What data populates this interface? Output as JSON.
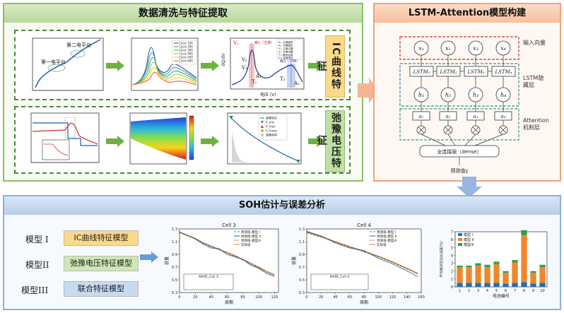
{
  "top_left": {
    "title": "数据清洗与特征提取",
    "ic_feature_label": "IC曲线特征",
    "relax_feature_label": "弛豫电压特征",
    "plot1": {
      "annotations": [
        "第二电平台",
        "第一电平台"
      ]
    },
    "plot2": {
      "legend": [
        "Cycle 100",
        "Cycle 200",
        "Cycle 300",
        "Cycle 400",
        "Cycle 500",
        "Cycle 600"
      ]
    },
    "plot3": {
      "ylabel": "dQ/dV",
      "xlabel": "电压 (V)",
      "annotations": [
        "V₁",
        "V₂",
        "V₃",
        "峰1（主峰）",
        "峰2（次峰）",
        "A₁",
        "A₂",
        "T₁",
        "T₂"
      ],
      "legend": [
        "A₁: 主峰面积",
        "A₂: 次峰面积",
        "V₁: 主峰位置",
        "V₂: 次峰位置",
        "T₁: 峰间谷值",
        "V₃: 谷值电压"
      ]
    },
    "plot6": {
      "legend": [
        "弛豫电压",
        "V_min",
        "V_max",
        "V_mean",
        "弛豫斜率"
      ]
    }
  },
  "top_right": {
    "title": "LSTM-Attention模型构建",
    "inputs": [
      "x₁",
      "x₂",
      "x₃",
      "x₄"
    ],
    "lstm_cells": [
      "LSTM₁",
      "LSTM₂",
      "LSTM₃",
      "LSTM₄"
    ],
    "hidden": [
      "h₁",
      "h₂",
      "h₃",
      "h₄"
    ],
    "attention": [
      "a₁",
      "a₂",
      "a₃",
      "a₄"
    ],
    "input_layer_label": "输入向量",
    "lstm_layer_label": "LSTM隐藏层",
    "attention_layer_label": "Attention机制层",
    "fc_label": "全连接层（dense）",
    "output_label": "预测值y"
  },
  "bottom": {
    "title": "SOH估计与误差分析",
    "models": [
      {
        "name": "模型 I",
        "desc": "IC曲线特征模型",
        "color": "#fbd98a"
      },
      {
        "name": "模型II",
        "desc": "弛豫电压特征模型",
        "color": "#cfe6b5"
      },
      {
        "name": "模型III",
        "desc": "联合特征模型",
        "color": "#c6daf0"
      }
    ],
    "chart_cell3": {
      "title": "Cell 3",
      "xlabel": "周期",
      "ylabel": "容量",
      "inset_title": "MAPE_Cell 3",
      "legend": [
        "预测值-模型 I",
        "预测值-模型 II",
        "预测值-模型III",
        "实际值"
      ]
    },
    "chart_cell4": {
      "title": "Cell 4",
      "xlabel": "周期",
      "ylabel": "容量",
      "inset_title": "MAPE_Cell 4",
      "legend": [
        "预测值-模型 I",
        "预测值-模型 II",
        "预测值-模型III",
        "实际值"
      ]
    },
    "bar_chart": {
      "ylabel": "平均绝对百分比误差(%)",
      "xlabel": "电池编号",
      "legend": [
        "模型 I",
        "模型 II",
        "模型III"
      ]
    }
  },
  "chart_data": [
    {
      "type": "line",
      "title": "Cell 3",
      "xlabel": "周期",
      "ylabel": "容量",
      "xlim": [
        0,
        125
      ],
      "ylim": [
        0.3,
        1.3
      ],
      "xticks": [
        0,
        20,
        40,
        60,
        80,
        100,
        120
      ],
      "yticks": [
        0.3,
        0.5,
        0.7,
        0.9,
        1.1,
        1.3
      ],
      "x": [
        0,
        10,
        20,
        30,
        40,
        50,
        60,
        70,
        80,
        90,
        100,
        110,
        120
      ],
      "series": [
        {
          "name": "实际值",
          "values": [
            1.25,
            1.2,
            1.15,
            1.08,
            1.03,
            0.98,
            0.93,
            0.88,
            0.82,
            0.76,
            0.7,
            0.63,
            0.58
          ]
        },
        {
          "name": "预测值-模型 I",
          "values": [
            1.24,
            1.19,
            1.14,
            1.07,
            1.02,
            0.97,
            0.92,
            0.87,
            0.81,
            0.75,
            0.69,
            0.62,
            0.57
          ]
        },
        {
          "name": "预测值-模型 II",
          "values": [
            1.25,
            1.2,
            1.14,
            1.06,
            1.0,
            0.99,
            0.9,
            0.86,
            0.82,
            0.73,
            0.68,
            0.6,
            0.55
          ]
        },
        {
          "name": "预测值-模型III",
          "values": [
            1.25,
            1.2,
            1.15,
            1.08,
            1.03,
            0.98,
            0.93,
            0.88,
            0.82,
            0.76,
            0.7,
            0.63,
            0.58
          ]
        }
      ]
    },
    {
      "type": "line",
      "title": "Cell 4",
      "xlabel": "周期",
      "ylabel": "容量",
      "xlim": [
        0,
        160
      ],
      "ylim": [
        0.3,
        1.3
      ],
      "xticks": [
        0,
        20,
        40,
        60,
        80,
        100,
        120,
        140,
        160
      ],
      "yticks": [
        0.3,
        0.5,
        0.7,
        0.9,
        1.1,
        1.3
      ],
      "x": [
        0,
        20,
        40,
        60,
        80,
        100,
        120,
        140,
        155
      ],
      "series": [
        {
          "name": "实际值",
          "values": [
            1.25,
            1.18,
            1.1,
            1.02,
            0.95,
            0.87,
            0.78,
            0.68,
            0.6
          ]
        },
        {
          "name": "预测值-模型 I",
          "values": [
            1.24,
            1.17,
            1.09,
            1.01,
            0.94,
            0.86,
            0.77,
            0.67,
            0.59
          ]
        },
        {
          "name": "预测值-模型 II",
          "values": [
            1.26,
            1.19,
            1.08,
            1.0,
            0.96,
            0.84,
            0.75,
            0.64,
            0.55
          ]
        },
        {
          "name": "预测值-模型III",
          "values": [
            1.25,
            1.18,
            1.1,
            1.02,
            0.95,
            0.87,
            0.78,
            0.68,
            0.6
          ]
        }
      ]
    },
    {
      "type": "bar",
      "stacked": true,
      "xlabel": "电池编号",
      "ylabel": "平均绝对百分比误差(%)",
      "categories": [
        "1",
        "2",
        "3",
        "4",
        "5",
        "6",
        "7",
        "8",
        "9",
        "10"
      ],
      "ylim": [
        0,
        7
      ],
      "yticks": [
        0,
        1,
        2,
        3,
        4,
        5,
        6,
        7
      ],
      "series": [
        {
          "name": "模型 I",
          "values": [
            0.5,
            0.5,
            0.5,
            0.5,
            0.5,
            0.4,
            0.5,
            0.6,
            0.4,
            0.5
          ]
        },
        {
          "name": "模型 II",
          "values": [
            2.0,
            2.0,
            2.2,
            2.0,
            2.4,
            1.4,
            2.6,
            6.0,
            1.4,
            2.0
          ]
        },
        {
          "name": "模型III",
          "values": [
            0.2,
            0.2,
            0.3,
            0.3,
            0.3,
            0.2,
            0.3,
            0.6,
            0.2,
            0.3
          ]
        }
      ]
    }
  ]
}
